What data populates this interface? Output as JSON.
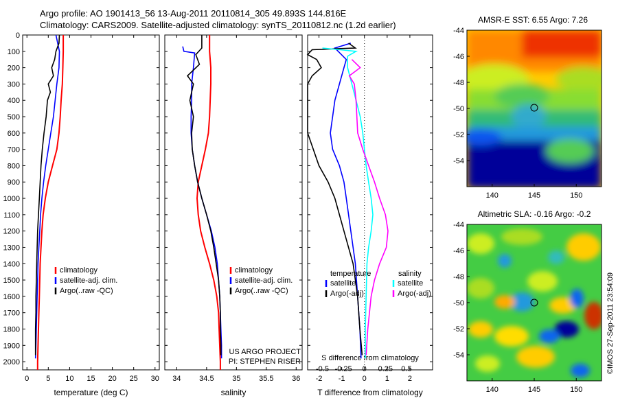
{
  "header": {
    "line1": "Argo profile: AO 1901413_56 13-Aug-2011 20110814_305 49.893S 144.816E",
    "line2": "Climatology: CARS2009. Satellite-adjusted climatology: synTS_20110812.nc (1.2d earlier)"
  },
  "colors": {
    "climatology": "#ff0000",
    "satellite": "#0000ff",
    "argo": "#000000",
    "satellite_salinity": "#00ffff",
    "argo_salinity": "#ff00ff"
  },
  "chart_data": [
    {
      "type": "line",
      "panel": "temperature",
      "xlabel": "temperature (deg C)",
      "ylabel": "",
      "xlim": [
        -1,
        31
      ],
      "ylim": [
        2050,
        0
      ],
      "xticks": [
        "0",
        "5",
        "10",
        "15",
        "20",
        "25",
        "30"
      ],
      "yticks": [
        "0",
        "100",
        "200",
        "300",
        "400",
        "500",
        "600",
        "700",
        "800",
        "900",
        "1000",
        "1100",
        "1200",
        "1300",
        "1400",
        "1500",
        "1600",
        "1700",
        "1800",
        "1900",
        "2000"
      ],
      "legend": [
        "climatology",
        "satellite-adj. clim.",
        "Argo(..raw -QC)"
      ],
      "legend_position": "lower-right",
      "series": [
        {
          "name": "climatology",
          "color": "#ff0000",
          "points": [
            [
              8.5,
              0
            ],
            [
              8.5,
              100
            ],
            [
              8.4,
              200
            ],
            [
              8.3,
              300
            ],
            [
              8.0,
              400
            ],
            [
              7.8,
              500
            ],
            [
              7.5,
              600
            ],
            [
              7.0,
              700
            ],
            [
              6.0,
              800
            ],
            [
              5.0,
              900
            ],
            [
              4.3,
              1000
            ],
            [
              3.8,
              1100
            ],
            [
              3.5,
              1200
            ],
            [
              3.3,
              1300
            ],
            [
              3.1,
              1400
            ],
            [
              3.0,
              1500
            ],
            [
              2.9,
              1600
            ],
            [
              2.8,
              1700
            ],
            [
              2.7,
              1800
            ],
            [
              2.6,
              1900
            ],
            [
              2.5,
              2000
            ],
            [
              2.5,
              2050
            ]
          ]
        },
        {
          "name": "satellite-adj. clim.",
          "color": "#0000ff",
          "points": [
            [
              6.8,
              0
            ],
            [
              7.2,
              50
            ],
            [
              7.6,
              100
            ],
            [
              7.5,
              200
            ],
            [
              7.0,
              300
            ],
            [
              6.6,
              400
            ],
            [
              6.2,
              500
            ],
            [
              5.6,
              600
            ],
            [
              5.0,
              700
            ],
            [
              4.4,
              800
            ],
            [
              3.9,
              900
            ],
            [
              3.5,
              1000
            ],
            [
              3.2,
              1100
            ],
            [
              3.0,
              1200
            ],
            [
              2.8,
              1300
            ],
            [
              2.6,
              1400
            ],
            [
              2.5,
              1500
            ],
            [
              2.4,
              1600
            ],
            [
              2.3,
              1700
            ],
            [
              2.2,
              1800
            ],
            [
              2.1,
              1900
            ],
            [
              2.0,
              1980
            ]
          ]
        },
        {
          "name": "Argo(..raw -QC)",
          "color": "#000000",
          "points": [
            [
              7.6,
              0
            ],
            [
              7.5,
              50
            ],
            [
              6.8,
              100
            ],
            [
              6.5,
              150
            ],
            [
              5.8,
              200
            ],
            [
              6.2,
              250
            ],
            [
              5.0,
              300
            ],
            [
              5.5,
              350
            ],
            [
              4.8,
              400
            ],
            [
              4.5,
              500
            ],
            [
              4.0,
              600
            ],
            [
              3.6,
              700
            ],
            [
              3.3,
              800
            ],
            [
              3.1,
              900
            ],
            [
              2.9,
              1000
            ],
            [
              2.7,
              1100
            ],
            [
              2.5,
              1200
            ],
            [
              2.4,
              1300
            ],
            [
              2.3,
              1400
            ],
            [
              2.2,
              1500
            ],
            [
              2.1,
              1600
            ],
            [
              2.1,
              1700
            ],
            [
              2.0,
              1800
            ],
            [
              2.0,
              1900
            ],
            [
              2.0,
              1960
            ]
          ]
        }
      ]
    },
    {
      "type": "line",
      "panel": "salinity",
      "xlabel": "salinity",
      "ylabel": "",
      "xlim": [
        33.8,
        36.1
      ],
      "ylim": [
        2050,
        0
      ],
      "xticks": [
        "34",
        "34.5",
        "35",
        "35.5",
        "36"
      ],
      "legend": [
        "climatology",
        "satellite-adj. clim.",
        "Argo(..raw -QC)"
      ],
      "legend_position": "lower-right",
      "annotations": [
        "US ARGO PROJECT",
        "PI: STEPHEN RISER"
      ],
      "series": [
        {
          "name": "climatology",
          "color": "#ff0000",
          "points": [
            [
              34.55,
              0
            ],
            [
              34.55,
              100
            ],
            [
              34.57,
              200
            ],
            [
              34.57,
              300
            ],
            [
              34.56,
              400
            ],
            [
              34.55,
              500
            ],
            [
              34.53,
              600
            ],
            [
              34.48,
              700
            ],
            [
              34.42,
              800
            ],
            [
              34.36,
              900
            ],
            [
              34.34,
              1000
            ],
            [
              34.36,
              1100
            ],
            [
              34.4,
              1200
            ],
            [
              34.47,
              1300
            ],
            [
              34.55,
              1400
            ],
            [
              34.62,
              1500
            ],
            [
              34.67,
              1600
            ],
            [
              34.7,
              1700
            ],
            [
              34.71,
              1800
            ],
            [
              34.72,
              1900
            ],
            [
              34.73,
              2000
            ],
            [
              34.73,
              2050
            ]
          ]
        },
        {
          "name": "satellite-adj. clim.",
          "color": "#0000ff",
          "points": [
            [
              34.1,
              70
            ],
            [
              34.12,
              100
            ],
            [
              34.3,
              110
            ],
            [
              34.28,
              200
            ],
            [
              34.25,
              300
            ],
            [
              34.25,
              400
            ],
            [
              34.24,
              500
            ],
            [
              34.24,
              600
            ],
            [
              34.26,
              700
            ],
            [
              34.3,
              800
            ],
            [
              34.35,
              900
            ],
            [
              34.42,
              1000
            ],
            [
              34.5,
              1100
            ],
            [
              34.58,
              1200
            ],
            [
              34.64,
              1300
            ],
            [
              34.68,
              1400
            ],
            [
              34.7,
              1500
            ],
            [
              34.72,
              1600
            ],
            [
              34.73,
              1700
            ],
            [
              34.74,
              1800
            ],
            [
              34.75,
              1900
            ],
            [
              34.75,
              1980
            ]
          ]
        },
        {
          "name": "Argo(..raw -QC)",
          "color": "#000000",
          "points": [
            [
              34.42,
              0
            ],
            [
              34.42,
              80
            ],
            [
              34.32,
              120
            ],
            [
              34.38,
              180
            ],
            [
              34.18,
              250
            ],
            [
              34.28,
              300
            ],
            [
              34.22,
              400
            ],
            [
              34.28,
              500
            ],
            [
              34.25,
              600
            ],
            [
              34.26,
              700
            ],
            [
              34.3,
              800
            ],
            [
              34.35,
              900
            ],
            [
              34.42,
              1000
            ],
            [
              34.5,
              1100
            ],
            [
              34.57,
              1200
            ],
            [
              34.62,
              1300
            ],
            [
              34.66,
              1400
            ],
            [
              34.7,
              1500
            ],
            [
              34.72,
              1600
            ],
            [
              34.73,
              1700
            ],
            [
              34.73,
              1800
            ],
            [
              34.74,
              1900
            ],
            [
              34.74,
              1960
            ]
          ]
        }
      ]
    },
    {
      "type": "line",
      "panel": "difference",
      "xlabel": "T difference from climatology",
      "xlabel_top": "S difference from climatology",
      "xlim": [
        -2.5,
        3.0
      ],
      "ylim": [
        2050,
        0
      ],
      "xticks_T": [
        "-2",
        "-1",
        "0",
        "1",
        "2"
      ],
      "xticks_S": [
        "-0.5",
        "-0.25",
        "0",
        "0.25",
        "0.5"
      ],
      "legend": [
        "temperature",
        "satellite",
        "Argo(-adj)",
        "salinity",
        "satellite",
        "Argo(-adj)"
      ],
      "series": [
        {
          "name": "T satellite",
          "color": "#0000ff",
          "points": [
            [
              -0.6,
              50
            ],
            [
              -1.3,
              80
            ],
            [
              -0.8,
              150
            ],
            [
              -0.9,
              200
            ],
            [
              -1.3,
              400
            ],
            [
              -1.4,
              500
            ],
            [
              -1.5,
              600
            ],
            [
              -1.4,
              700
            ],
            [
              -1.1,
              800
            ],
            [
              -0.9,
              900
            ],
            [
              -0.8,
              1000
            ],
            [
              -0.6,
              1200
            ],
            [
              -0.4,
              1400
            ],
            [
              -0.3,
              1600
            ],
            [
              -0.2,
              1800
            ],
            [
              -0.15,
              1980
            ]
          ]
        },
        {
          "name": "T Argo(-adj)",
          "color": "#000000",
          "points": [
            [
              -0.7,
              50
            ],
            [
              -0.4,
              80
            ],
            [
              -2.3,
              90
            ],
            [
              -2.5,
              120
            ],
            [
              -2.1,
              150
            ],
            [
              -1.9,
              200
            ],
            [
              -2.3,
              250
            ],
            [
              -2.5,
              300
            ],
            [
              -2.5,
              600
            ],
            [
              -2.0,
              800
            ],
            [
              -1.6,
              900
            ],
            [
              -1.3,
              1000
            ],
            [
              -0.9,
              1200
            ],
            [
              -0.5,
              1400
            ],
            [
              -0.3,
              1600
            ],
            [
              -0.2,
              1800
            ],
            [
              -0.1,
              1960
            ]
          ]
        },
        {
          "name": "S satellite",
          "color": "#00ffff",
          "points": [
            [
              -0.5,
              80
            ],
            [
              -0.1,
              100
            ],
            [
              -0.2,
              130
            ],
            [
              -0.2,
              200
            ],
            [
              -0.15,
              300
            ],
            [
              -0.1,
              400
            ],
            [
              -0.05,
              500
            ],
            [
              -0.02,
              600
            ],
            [
              0,
              700
            ],
            [
              0.02,
              800
            ],
            [
              0.05,
              900
            ],
            [
              0.08,
              1000
            ],
            [
              0.1,
              1100
            ],
            [
              0.08,
              1200
            ],
            [
              0.05,
              1300
            ],
            [
              0.03,
              1400
            ],
            [
              0.02,
              1600
            ],
            [
              0.01,
              1800
            ],
            [
              0.01,
              1980
            ]
          ]
        },
        {
          "name": "S Argo(-adj)",
          "color": "#ff00ff",
          "points": [
            [
              -0.15,
              150
            ],
            [
              -0.05,
              200
            ],
            [
              -0.18,
              250
            ],
            [
              -0.12,
              300
            ],
            [
              -0.1,
              400
            ],
            [
              -0.08,
              600
            ],
            [
              -0.02,
              700
            ],
            [
              0.05,
              800
            ],
            [
              0.12,
              900
            ],
            [
              0.18,
              1000
            ],
            [
              0.25,
              1100
            ],
            [
              0.28,
              1200
            ],
            [
              0.26,
              1300
            ],
            [
              0.18,
              1400
            ],
            [
              0.12,
              1500
            ],
            [
              0.08,
              1600
            ],
            [
              0.04,
              1800
            ],
            [
              0.02,
              1960
            ]
          ]
        }
      ]
    },
    {
      "type": "heatmap",
      "panel": "sst-map",
      "title": "AMSR-E SST: 6.55 Argo: 7.26",
      "xticks": [
        "140",
        "145",
        "150"
      ],
      "yticks": [
        "-44",
        "-46",
        "-48",
        "-50",
        "-52",
        "-54"
      ],
      "xlim": [
        137,
        153
      ],
      "ylim": [
        -56,
        -44
      ],
      "marker": [
        144.816,
        -49.893
      ]
    },
    {
      "type": "heatmap",
      "panel": "sla-map",
      "title": "Altimetric SLA: -0.16 Argo: -0.2",
      "xticks": [
        "140",
        "145",
        "150"
      ],
      "yticks": [
        "-44",
        "-46",
        "-48",
        "-50",
        "-52",
        "-54"
      ],
      "xlim": [
        137,
        153
      ],
      "ylim": [
        -56,
        -44
      ],
      "marker": [
        144.816,
        -49.893
      ]
    }
  ],
  "side_label": "©IMOS 27-Sep-2011 23:54:09"
}
